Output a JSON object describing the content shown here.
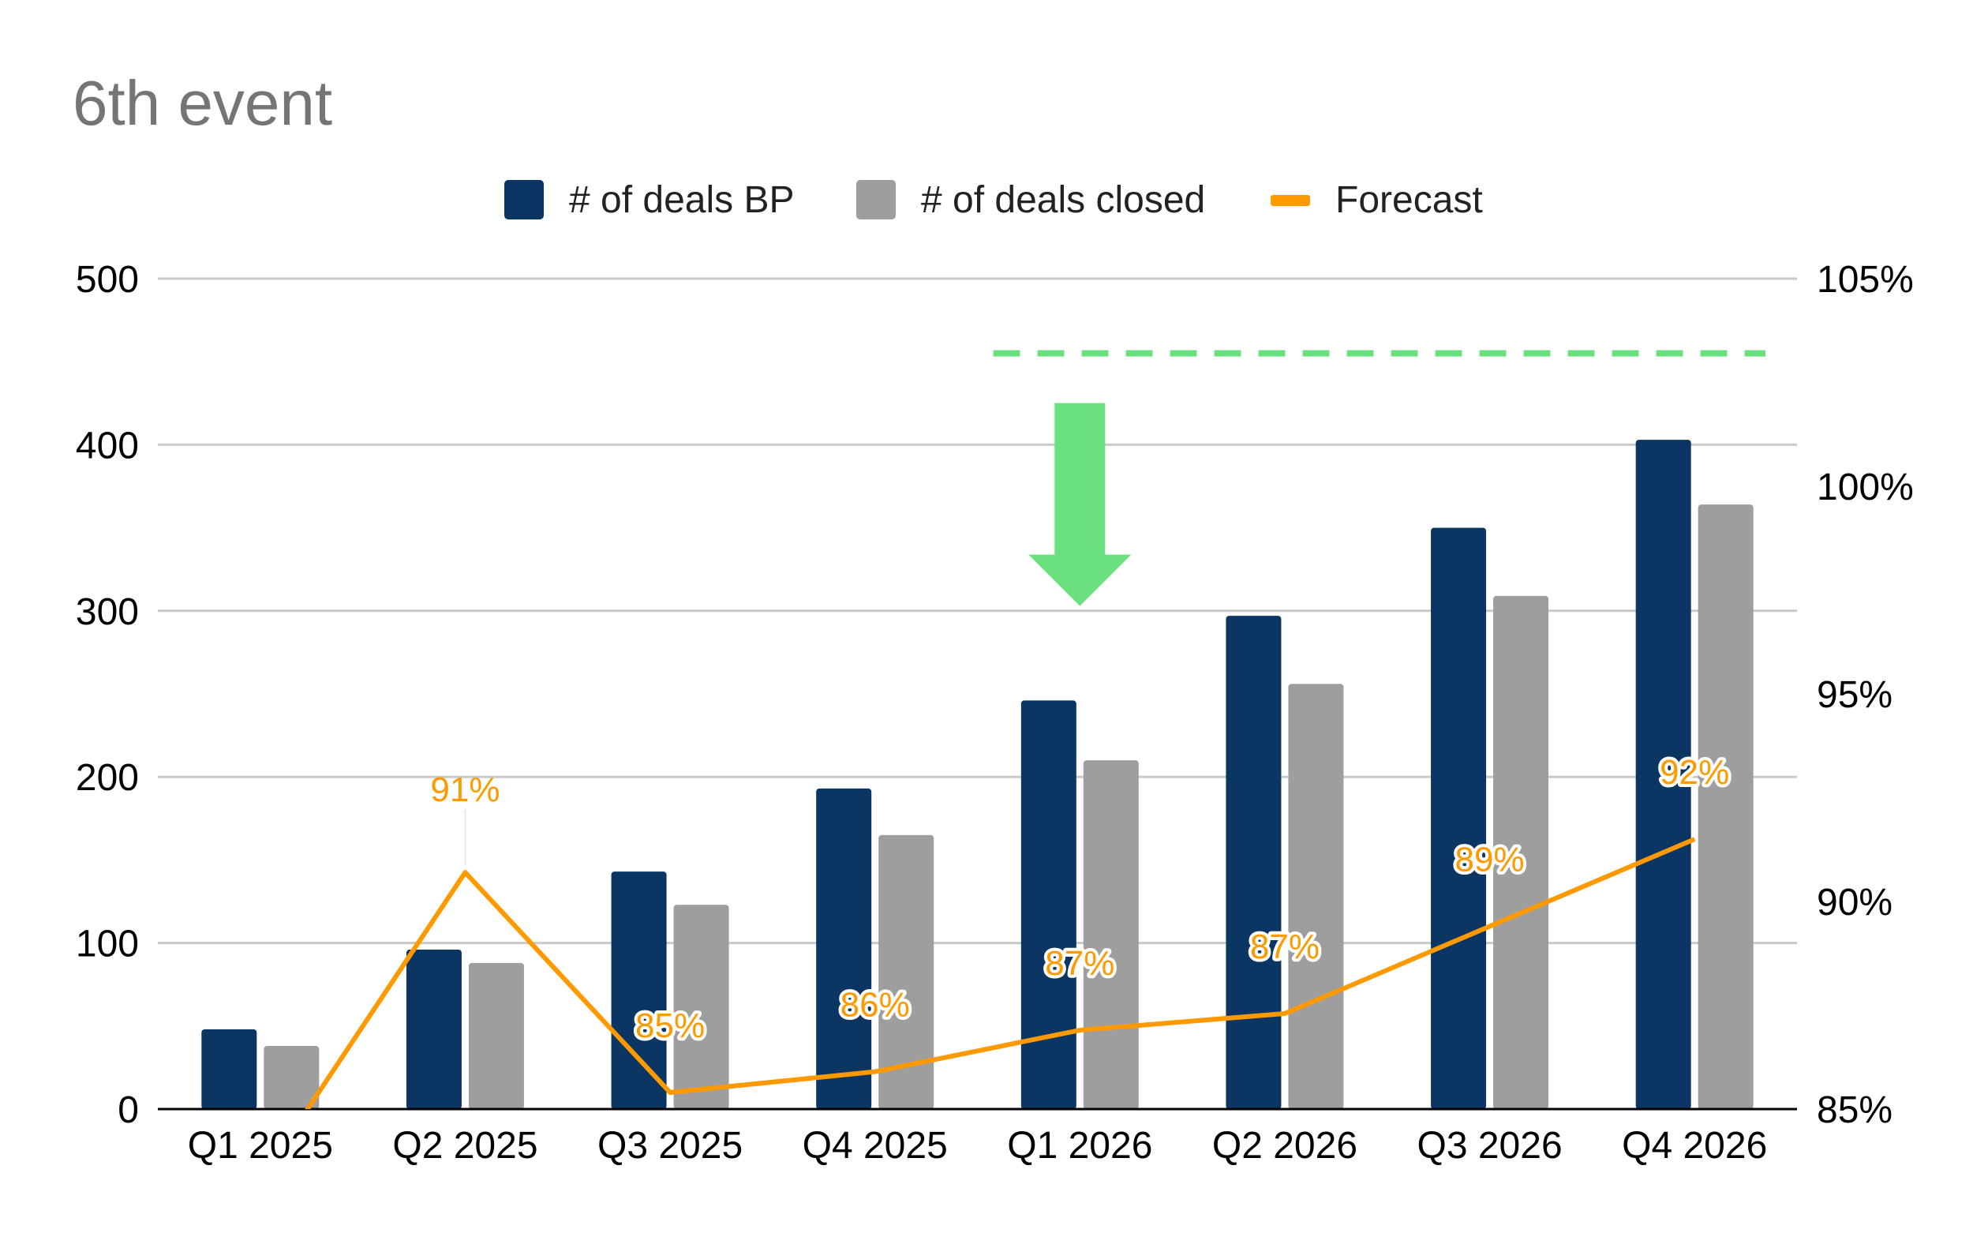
{
  "chart_data": {
    "type": "bar",
    "title": "6th event",
    "categories": [
      "Q1 2025",
      "Q2 2025",
      "Q3 2025",
      "Q4 2025",
      "Q1 2026",
      "Q2 2026",
      "Q3 2026",
      "Q4 2026"
    ],
    "series": [
      {
        "name": "# of deals BP",
        "type": "bar",
        "axis": "left",
        "color": "#0b3563",
        "values": [
          48,
          96,
          143,
          193,
          246,
          297,
          350,
          403
        ]
      },
      {
        "name": "# of deals closed",
        "type": "bar",
        "axis": "left",
        "color": "#9e9e9e",
        "values": [
          38,
          88,
          123,
          165,
          210,
          256,
          309,
          364
        ]
      },
      {
        "name": "Forecast",
        "type": "line",
        "axis": "right",
        "color": "#ff9900",
        "values": [
          85.0,
          90.7,
          85.4,
          85.9,
          86.9,
          87.3,
          89.4,
          91.5
        ],
        "data_labels": [
          "",
          "91%",
          "85%",
          "86%",
          "87%",
          "87%",
          "89%",
          "92%"
        ]
      }
    ],
    "y_left": {
      "ylim": [
        0,
        500
      ],
      "ticks": [
        0,
        100,
        200,
        300,
        400,
        500
      ],
      "tick_labels": [
        "0",
        "100",
        "200",
        "300",
        "400",
        "500"
      ]
    },
    "y_right": {
      "ylim": [
        85,
        105
      ],
      "ticks": [
        85,
        90,
        95,
        100,
        105
      ],
      "tick_labels": [
        "85%",
        "90%",
        "95%",
        "100%",
        "105%"
      ]
    },
    "xlabel": "",
    "ylabel": "",
    "grid": true,
    "legend": "top-center",
    "annotations": {
      "target_line": {
        "style": "dashed",
        "color": "#6be07e",
        "right_axis_value": 103.2,
        "from_category": "Q1 2026",
        "to_category": "Q4 2026"
      },
      "arrow": {
        "direction": "down",
        "color": "#6be07e",
        "category": "Q1 2026"
      }
    },
    "colors": {
      "grid": "#c9c9c9",
      "axis": "#000000",
      "title": "#757575",
      "halo": "#ffffff"
    }
  }
}
